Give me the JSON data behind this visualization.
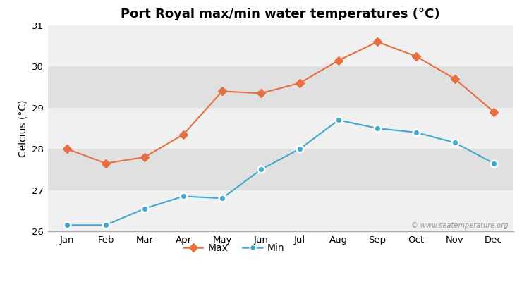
{
  "title": "Port Royal max/min water temperatures (°C)",
  "ylabel": "Celcius (°C)",
  "months": [
    "Jan",
    "Feb",
    "Mar",
    "Apr",
    "May",
    "Jun",
    "Jul",
    "Aug",
    "Sep",
    "Oct",
    "Nov",
    "Dec"
  ],
  "max_temps": [
    28.0,
    27.65,
    27.8,
    28.35,
    29.4,
    29.35,
    29.6,
    30.15,
    30.6,
    30.25,
    29.7,
    28.9
  ],
  "min_temps": [
    26.15,
    26.15,
    26.55,
    26.85,
    26.8,
    27.5,
    28.0,
    28.7,
    28.5,
    28.4,
    28.15,
    27.65
  ],
  "max_color": "#e87040",
  "min_color": "#42a8d0",
  "ylim_min": 26,
  "ylim_max": 31,
  "yticks": [
    26,
    27,
    28,
    29,
    30,
    31
  ],
  "bg_color": "#ffffff",
  "band_light": "#f0f0f0",
  "band_dark": "#e0e0e0",
  "watermark": "© www.seatemperature.org",
  "title_fontsize": 13,
  "axis_fontsize": 10,
  "tick_fontsize": 9.5
}
